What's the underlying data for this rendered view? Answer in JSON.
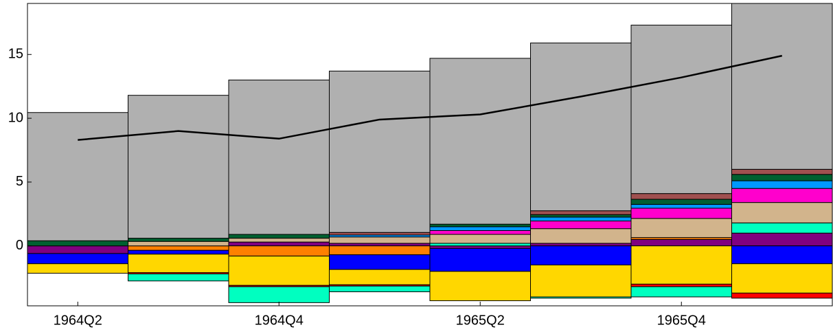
{
  "chart_data": {
    "type": "bar",
    "categories": [
      "1964Q2",
      null,
      "1964Q4",
      null,
      "1965Q2",
      null,
      "1965Q4",
      null
    ],
    "ylim": [
      -4.7,
      19.0
    ],
    "yticks": [
      0,
      5,
      10,
      15
    ],
    "series": [
      {
        "color": "#800080",
        "values": [
          -0.6,
          0,
          0.3,
          0.2,
          -0.2,
          0.2,
          0.5,
          1.0
        ]
      },
      {
        "color": "#ff8000",
        "values": [
          0,
          -0.35,
          -0.8,
          -0.7,
          0,
          0,
          0.15,
          0
        ]
      },
      {
        "color": "#0000ff",
        "values": [
          -0.8,
          -0.3,
          0,
          -1.15,
          -1.8,
          -1.5,
          0,
          -1.4
        ]
      },
      {
        "color": "#ffd700",
        "values": [
          -0.75,
          -1.45,
          -2.3,
          -1.2,
          -2.3,
          -2.5,
          -3.0,
          -2.3
        ]
      },
      {
        "color": "#ff0000",
        "values": [
          0,
          -0.1,
          -0.1,
          -0.1,
          0,
          0,
          -0.2,
          -0.4
        ]
      },
      {
        "color": "#00ffc0",
        "values": [
          0,
          -0.55,
          -1.25,
          -0.45,
          0.2,
          -0.1,
          -0.8,
          0.8
        ]
      },
      {
        "color": "#d2b48c",
        "values": [
          0,
          0.35,
          0.3,
          0.5,
          0.7,
          1.15,
          1.5,
          1.6
        ]
      },
      {
        "color": "#ff00cc",
        "values": [
          0,
          0,
          0,
          0,
          0.3,
          0.6,
          0.8,
          1.1
        ]
      },
      {
        "color": "#0099ff",
        "values": [
          0,
          0,
          0,
          0.15,
          0.3,
          0.3,
          0.3,
          0.6
        ]
      },
      {
        "color": "#006030",
        "values": [
          0.4,
          0.25,
          0.3,
          0,
          0.2,
          0.2,
          0.4,
          0.5
        ]
      },
      {
        "color": "#a05050",
        "values": [
          0,
          0,
          0,
          0.2,
          0,
          0.3,
          0.45,
          0.4
        ]
      },
      {
        "color": "#b0b0b0",
        "values": [
          10.05,
          11.2,
          12.1,
          12.65,
          13.0,
          13.15,
          13.2,
          13.0
        ]
      },
      {
        "type": "line",
        "color": "#000000",
        "values": [
          8.3,
          9.0,
          8.4,
          9.9,
          10.3,
          11.7,
          13.2,
          14.9
        ]
      }
    ]
  }
}
